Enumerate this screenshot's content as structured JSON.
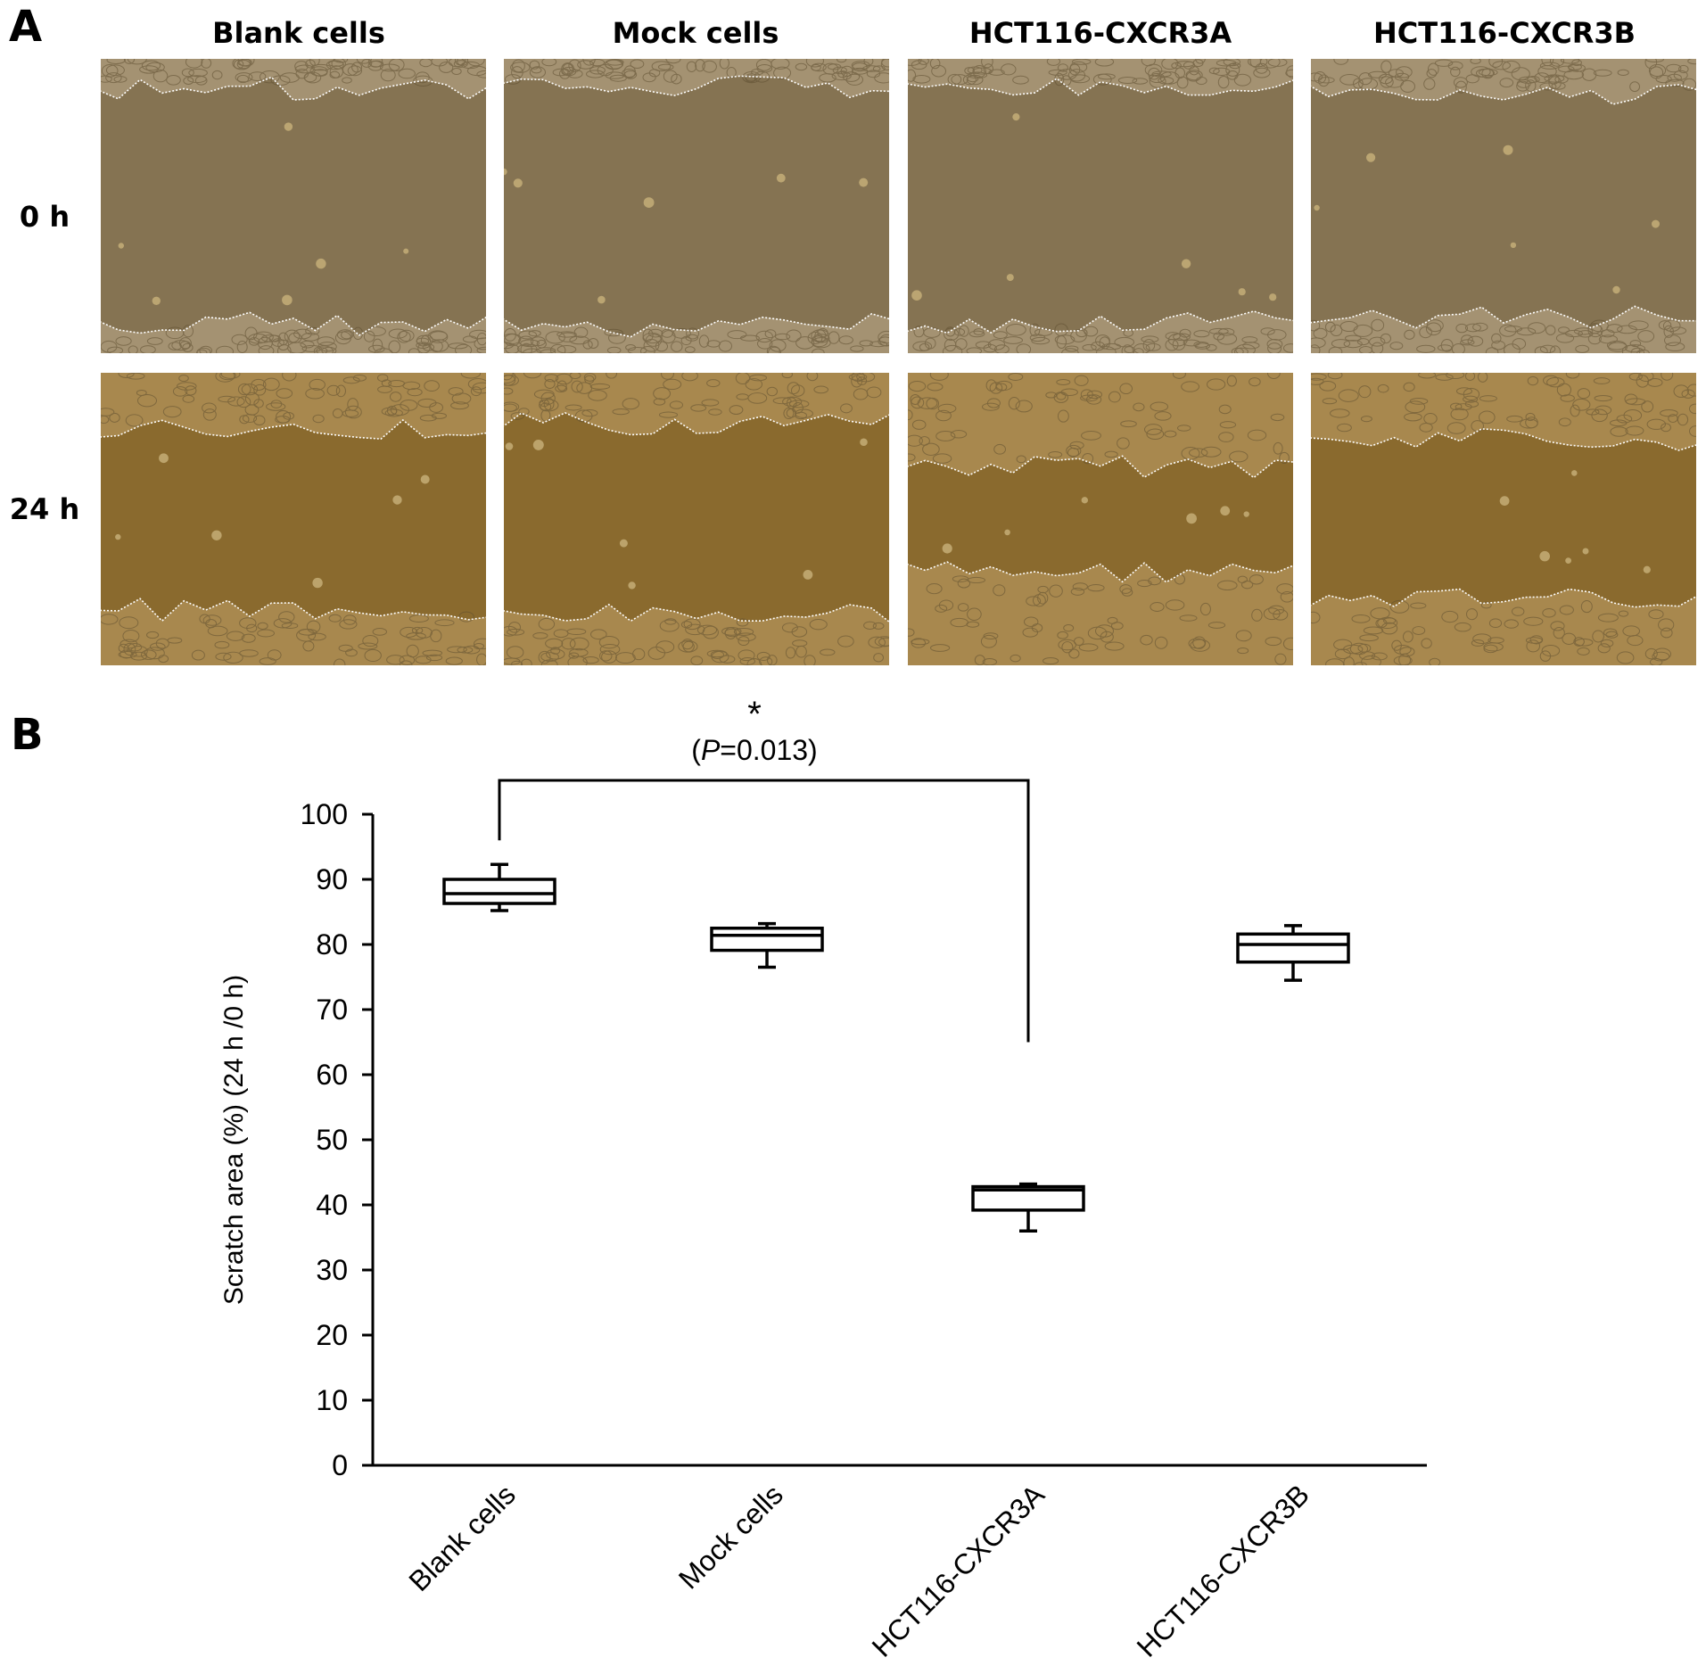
{
  "panel_a": {
    "letter": "A",
    "columns": [
      "Blank cells",
      "Mock cells",
      "HCT116-CXCR3A",
      "HCT116-CXCR3B"
    ],
    "rows": [
      "0 h",
      "24 h"
    ],
    "colors": {
      "gap_0h": "#857352",
      "gap_24h": "#8a6a2e",
      "cells_0h": "#a49272",
      "cells_24h": "#a8884e",
      "cell_outline": "#5e4e30",
      "wound_line": "#ffffff"
    },
    "wound_gap_fraction": {
      "0h": [
        0.8,
        0.81,
        0.79,
        0.76
      ],
      "24h": [
        0.62,
        0.65,
        0.36,
        0.54
      ]
    }
  },
  "panel_b": {
    "letter": "B",
    "significance": {
      "star": "*",
      "p_prefix": "(",
      "p_italic": "P",
      "p_value": "=0.013)"
    }
  },
  "chart_data": {
    "type": "box",
    "categories": [
      "Blank cells",
      "Mock cells",
      "HCT116-CXCR3A",
      "HCT116-CXCR3B"
    ],
    "boxes": [
      {
        "min": 85.2,
        "q1": 86.3,
        "median": 87.8,
        "q3": 90.0,
        "max": 92.3
      },
      {
        "min": 76.5,
        "q1": 79.1,
        "median": 81.4,
        "q3": 82.5,
        "max": 83.2
      },
      {
        "min": 36.0,
        "q1": 39.2,
        "median": 42.3,
        "q3": 42.8,
        "max": 43.2
      },
      {
        "min": 74.5,
        "q1": 77.3,
        "median": 80.0,
        "q3": 81.6,
        "max": 82.9
      }
    ],
    "ylabel": "Scratch area (%) (24 h /0 h)",
    "xlabel": "",
    "ylim": [
      0,
      100
    ],
    "yticks": [
      0,
      10,
      20,
      30,
      40,
      50,
      60,
      70,
      80,
      90,
      100
    ],
    "comparison": {
      "from": "Blank cells",
      "to": "HCT116-CXCR3A"
    },
    "grid": false
  }
}
